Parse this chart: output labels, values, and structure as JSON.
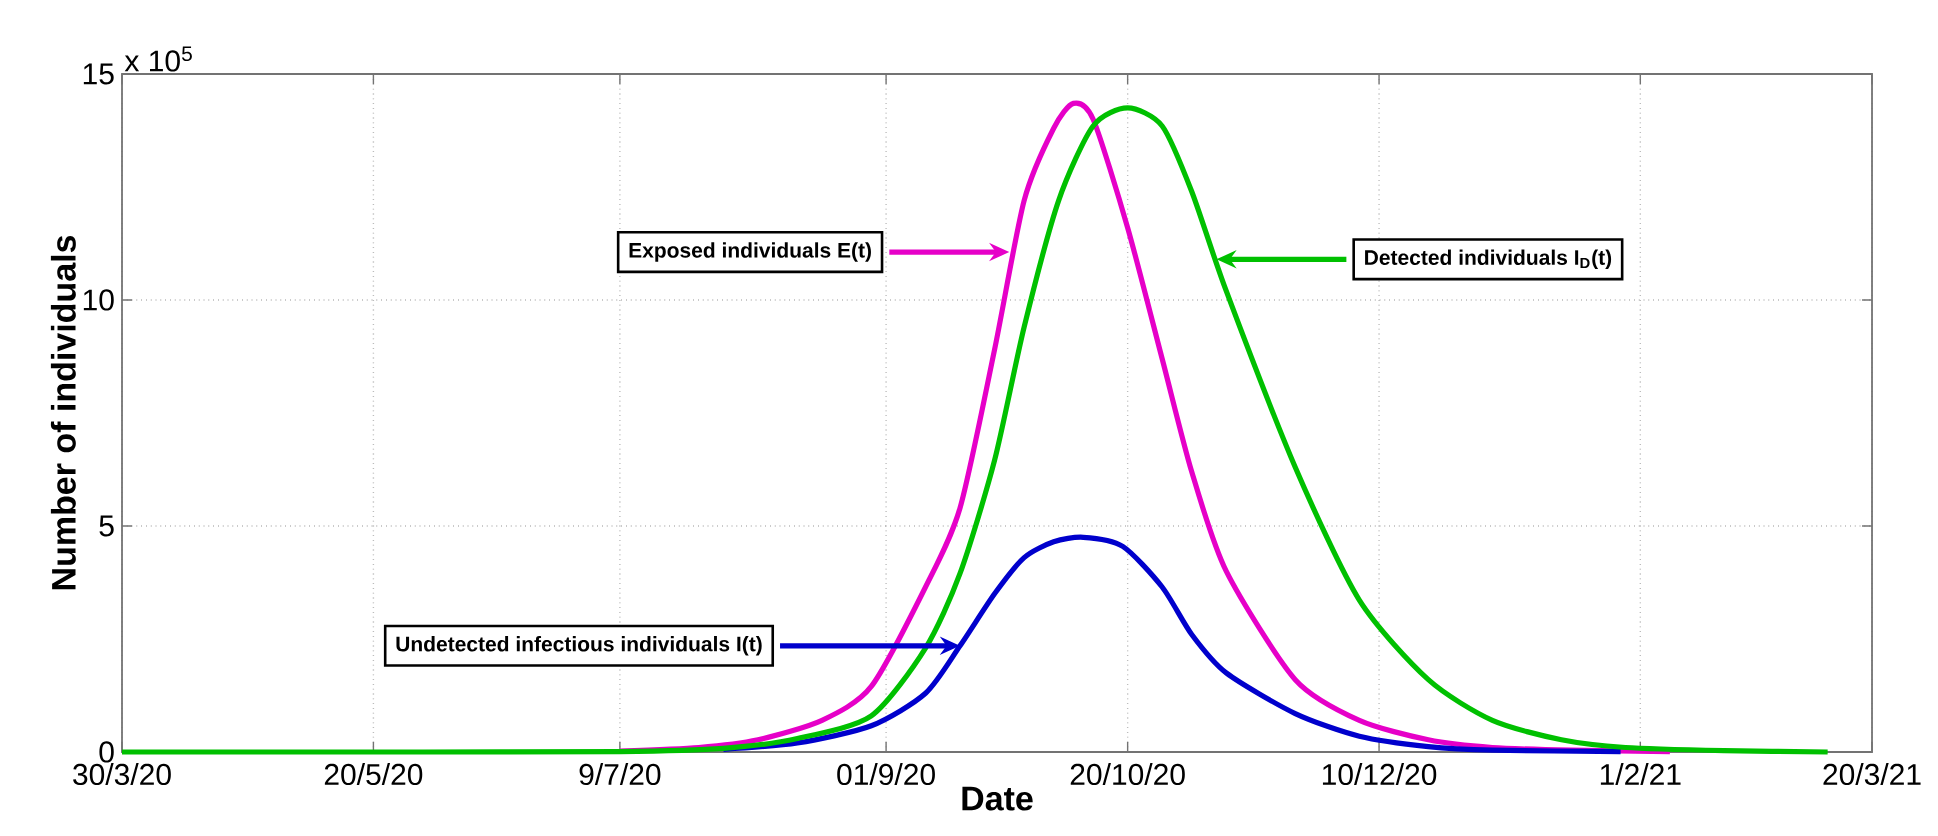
{
  "chart_data": {
    "type": "line",
    "xlabel": "Date",
    "ylabel": "Number of individuals",
    "xlim": [
      "2020-03-30",
      "2021-03-20"
    ],
    "ylim": [
      0,
      15
    ],
    "xticks": [
      {
        "value": "2020-03-30",
        "label": "30/3/20"
      },
      {
        "value": "2020-05-20",
        "label": "20/5/20"
      },
      {
        "value": "2020-07-09",
        "label": "9/7/20"
      },
      {
        "value": "2020-09-01",
        "label": "01/9/20"
      },
      {
        "value": "2020-10-20",
        "label": "20/10/20"
      },
      {
        "value": "2020-12-10",
        "label": "10/12/20"
      },
      {
        "value": "2021-02-01",
        "label": "1/2/21"
      },
      {
        "value": "2021-03-20",
        "label": "20/3/21"
      }
    ],
    "yticks": [
      0,
      5,
      10,
      15
    ],
    "grid": true,
    "line_style": "solid",
    "marker": "none",
    "annotations": [
      "x 10$^{5}$",
      {
        "text": "Exposed individuals E(t)",
        "x": "2020-09-26",
        "y": 11.06
      },
      {
        "text": "Undetected infectious individuals I(t)",
        "x": "2020-09-16",
        "y": 2.35
      },
      {
        "text": "Detected individuals I$_{D}$(t)",
        "x": "2020-11-07",
        "y": 10.9
      }
    ],
    "series": [
      {
        "color": "#e600c8",
        "x": [
          "2020-07-09",
          "2020-07-25",
          "2020-08-06",
          "2020-08-19",
          "2020-08-29",
          "2020-09-09",
          "2020-09-16",
          "2020-09-23",
          "2020-09-29",
          "2020-10-05",
          "2020-10-09",
          "2020-10-13",
          "2020-10-20",
          "2020-10-27",
          "2020-11-02",
          "2020-11-09",
          "2020-11-23",
          "2020-12-06",
          "2020-12-20",
          "2021-01-02",
          "2021-01-18",
          "2021-02-07"
        ],
        "values": [
          0.02,
          0.1,
          0.27,
          0.7,
          1.45,
          3.65,
          5.4,
          8.9,
          12.2,
          13.8,
          14.35,
          14.0,
          11.6,
          8.7,
          6.2,
          4.0,
          1.6,
          0.7,
          0.27,
          0.1,
          0.04,
          0.01
        ]
      },
      {
        "color": "#0000cc",
        "x": [
          "2020-07-30",
          "2020-08-14",
          "2020-08-29",
          "2020-09-09",
          "2020-09-16",
          "2020-09-23",
          "2020-09-29",
          "2020-10-05",
          "2020-10-11",
          "2020-10-19",
          "2020-10-27",
          "2020-11-02",
          "2020-11-09",
          "2020-11-23",
          "2020-12-06",
          "2020-12-20",
          "2021-01-02",
          "2021-01-28"
        ],
        "values": [
          0.06,
          0.2,
          0.58,
          1.3,
          2.35,
          3.5,
          4.3,
          4.65,
          4.75,
          4.55,
          3.65,
          2.6,
          1.75,
          0.85,
          0.35,
          0.12,
          0.04,
          0.01
        ]
      },
      {
        "color": "#00c000",
        "x": [
          "2020-03-30",
          "2020-05-30",
          "2020-07-09",
          "2020-07-30",
          "2020-08-14",
          "2020-08-29",
          "2020-09-09",
          "2020-09-16",
          "2020-09-23",
          "2020-09-29",
          "2020-10-06",
          "2020-10-13",
          "2020-10-20",
          "2020-10-27",
          "2020-11-02",
          "2020-11-09",
          "2020-11-23",
          "2020-12-06",
          "2020-12-20",
          "2021-01-02",
          "2021-01-16",
          "2021-01-29",
          "2021-02-18",
          "2021-03-11"
        ],
        "values": [
          0,
          0,
          0.01,
          0.08,
          0.3,
          0.8,
          2.3,
          3.95,
          6.45,
          9.4,
          12.2,
          13.85,
          14.25,
          13.85,
          12.4,
          10.2,
          6.3,
          3.36,
          1.6,
          0.7,
          0.27,
          0.1,
          0.03,
          0
        ]
      }
    ]
  }
}
